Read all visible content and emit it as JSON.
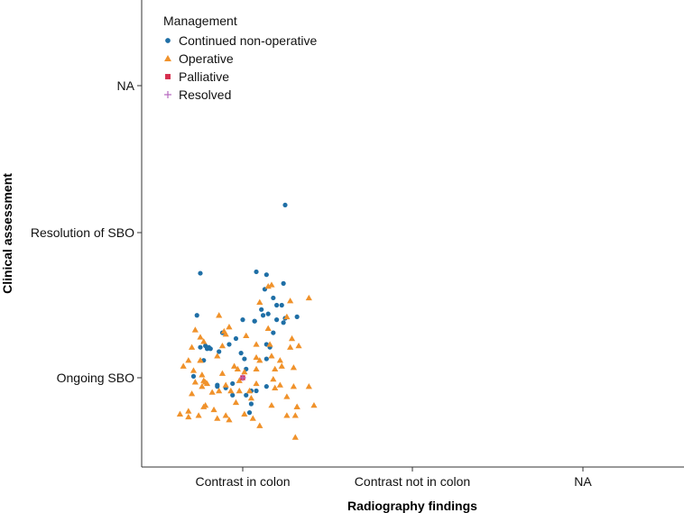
{
  "chart_data": {
    "type": "scatter",
    "title": "",
    "xlabel": "Radiography findings",
    "ylabel": "Clinical assessment",
    "x_categories": [
      "Contrast in colon",
      "Contrast not in colon",
      "NA"
    ],
    "y_categories": [
      "Ongoing SBO",
      "Resolution of SBO",
      "NA"
    ],
    "grid": false,
    "legend": {
      "title": "Management",
      "placement": "top-left",
      "entries": [
        {
          "name": "Continued non-operative",
          "marker": "circle",
          "color": "#1f6fa6"
        },
        {
          "name": "Operative",
          "marker": "triangle",
          "color": "#f0922b"
        },
        {
          "name": "Palliative",
          "marker": "square",
          "color": "#d62e4e"
        },
        {
          "name": "Resolved",
          "marker": "plus",
          "color": "#b86cc0"
        }
      ]
    },
    "series": [
      {
        "name": "Continued non-operative",
        "points": [
          [
            0.14,
            0.71
          ],
          [
            -0.27,
            0.43
          ],
          [
            0.01,
            0.13
          ],
          [
            -0.22,
            0.22
          ],
          [
            0.04,
            -0.24
          ],
          [
            0.05,
            -0.18
          ],
          [
            0.32,
            0.42
          ],
          [
            -0.29,
            0.01
          ],
          [
            0.0,
            0.4
          ],
          [
            -0.25,
            0.21
          ],
          [
            0.02,
            -0.12
          ],
          [
            -0.19,
            0.2
          ],
          [
            0.05,
            -0.09
          ],
          [
            0.07,
            0.39
          ],
          [
            -0.08,
            0.23
          ],
          [
            0.25,
            0.41
          ],
          [
            0.2,
            0.4
          ],
          [
            -0.21,
            0.2
          ],
          [
            -0.1,
            -0.07
          ],
          [
            0.13,
            0.61
          ],
          [
            0.08,
            0.73
          ],
          [
            -0.06,
            -0.12
          ],
          [
            0.18,
            0.55
          ],
          [
            -0.15,
            -0.05
          ],
          [
            0.07,
            0.39
          ],
          [
            -0.12,
            0.31
          ],
          [
            0.15,
            0.44
          ],
          [
            0.23,
            0.5
          ],
          [
            -0.01,
            0.17
          ],
          [
            -0.04,
            0.27
          ],
          [
            0.11,
            0.47
          ],
          [
            0.14,
            0.13
          ],
          [
            -0.2,
            0.21
          ],
          [
            0.24,
            0.65
          ],
          [
            0.18,
            0.31
          ],
          [
            -0.06,
            -0.04
          ],
          [
            0.12,
            0.43
          ],
          [
            0.2,
            0.5
          ],
          [
            -0.15,
            -0.06
          ],
          [
            -0.23,
            0.12
          ],
          [
            0.02,
            0.06
          ],
          [
            0.08,
            -0.09
          ],
          [
            0.25,
            1.19
          ],
          [
            -0.25,
            0.72
          ],
          [
            0.24,
            0.38
          ],
          [
            0.14,
            -0.06
          ],
          [
            -0.14,
            0.18
          ],
          [
            0.16,
            0.21
          ],
          [
            0.14,
            0.23
          ]
        ]
      },
      {
        "name": "Operative",
        "points": [
          [
            -0.32,
            -0.23
          ],
          [
            -0.1,
            -0.05
          ],
          [
            0.1,
            0.12
          ],
          [
            -0.14,
            -0.09
          ],
          [
            0.39,
            -0.06
          ],
          [
            0.31,
            -0.41
          ],
          [
            -0.32,
            0.12
          ],
          [
            -0.25,
            0.12
          ],
          [
            0.22,
            0.12
          ],
          [
            0.04,
            -0.09
          ],
          [
            -0.02,
            -0.02
          ],
          [
            0.19,
            0.06
          ],
          [
            -0.28,
            -0.03
          ],
          [
            0.08,
            0.06
          ],
          [
            -0.1,
            -0.26
          ],
          [
            0.32,
            -0.2
          ],
          [
            0.17,
            0.64
          ],
          [
            -0.37,
            -0.25
          ],
          [
            0.28,
            0.21
          ],
          [
            -0.22,
            -0.03
          ],
          [
            0.17,
            -0.19
          ],
          [
            -0.21,
            -0.04
          ],
          [
            0.23,
            0.08
          ],
          [
            0.33,
            0.22
          ],
          [
            0.02,
            0.29
          ],
          [
            -0.07,
            -0.09
          ],
          [
            0.29,
            0.27
          ],
          [
            -0.14,
            0.43
          ],
          [
            0.26,
            0.42
          ],
          [
            -0.24,
            -0.06
          ],
          [
            0.39,
            0.55
          ],
          [
            -0.24,
            0.02
          ],
          [
            -0.3,
            0.21
          ],
          [
            -0.29,
            0.05
          ],
          [
            -0.25,
            0.28
          ],
          [
            0.19,
            -0.07
          ],
          [
            0.28,
            0.53
          ],
          [
            0.15,
            0.63
          ],
          [
            -0.15,
            -0.28
          ],
          [
            -0.04,
            -0.17
          ],
          [
            0.01,
            -0.25
          ],
          [
            -0.03,
            0.06
          ],
          [
            0.42,
            -0.19
          ],
          [
            0.08,
            -0.04
          ],
          [
            -0.02,
            -0.09
          ],
          [
            -0.22,
            -0.19
          ],
          [
            -0.26,
            -0.26
          ],
          [
            -0.08,
            0.35
          ],
          [
            -0.17,
            -0.22
          ],
          [
            -0.28,
            0.33
          ],
          [
            0.26,
            -0.26
          ],
          [
            0.08,
            0.14
          ],
          [
            0.1,
            0.52
          ],
          [
            0.31,
            -0.26
          ],
          [
            0.17,
            0.15
          ],
          [
            -0.15,
            0.15
          ],
          [
            -0.1,
            0.3
          ],
          [
            -0.08,
            -0.29
          ],
          [
            0.06,
            -0.28
          ],
          [
            0.16,
            0.23
          ],
          [
            0.1,
            -0.33
          ],
          [
            -0.23,
            0.25
          ],
          [
            0.32,
            -0.2
          ],
          [
            0.08,
            0.23
          ],
          [
            -0.3,
            -0.11
          ],
          [
            0.05,
            -0.14
          ],
          [
            0.3,
            0.07
          ],
          [
            -0.35,
            0.08
          ],
          [
            -0.23,
            -0.2
          ],
          [
            -0.12,
            0.03
          ],
          [
            -0.25,
            0.12
          ],
          [
            -0.12,
            0.22
          ],
          [
            0.26,
            -0.13
          ],
          [
            0.01,
            0.04
          ],
          [
            -0.18,
            -0.1
          ],
          [
            -0.11,
            0.32
          ],
          [
            -0.23,
            -0.02
          ],
          [
            0.15,
            0.34
          ],
          [
            0.18,
            -0.01
          ],
          [
            -0.32,
            -0.27
          ],
          [
            0.3,
            -0.06
          ],
          [
            0.22,
            -0.05
          ],
          [
            -0.05,
            0.08
          ]
        ]
      },
      {
        "name": "Palliative",
        "points": [
          [
            0.0,
            0.0
          ]
        ]
      },
      {
        "name": "Resolved",
        "points": [
          [
            0.0,
            0.0
          ]
        ]
      }
    ]
  }
}
